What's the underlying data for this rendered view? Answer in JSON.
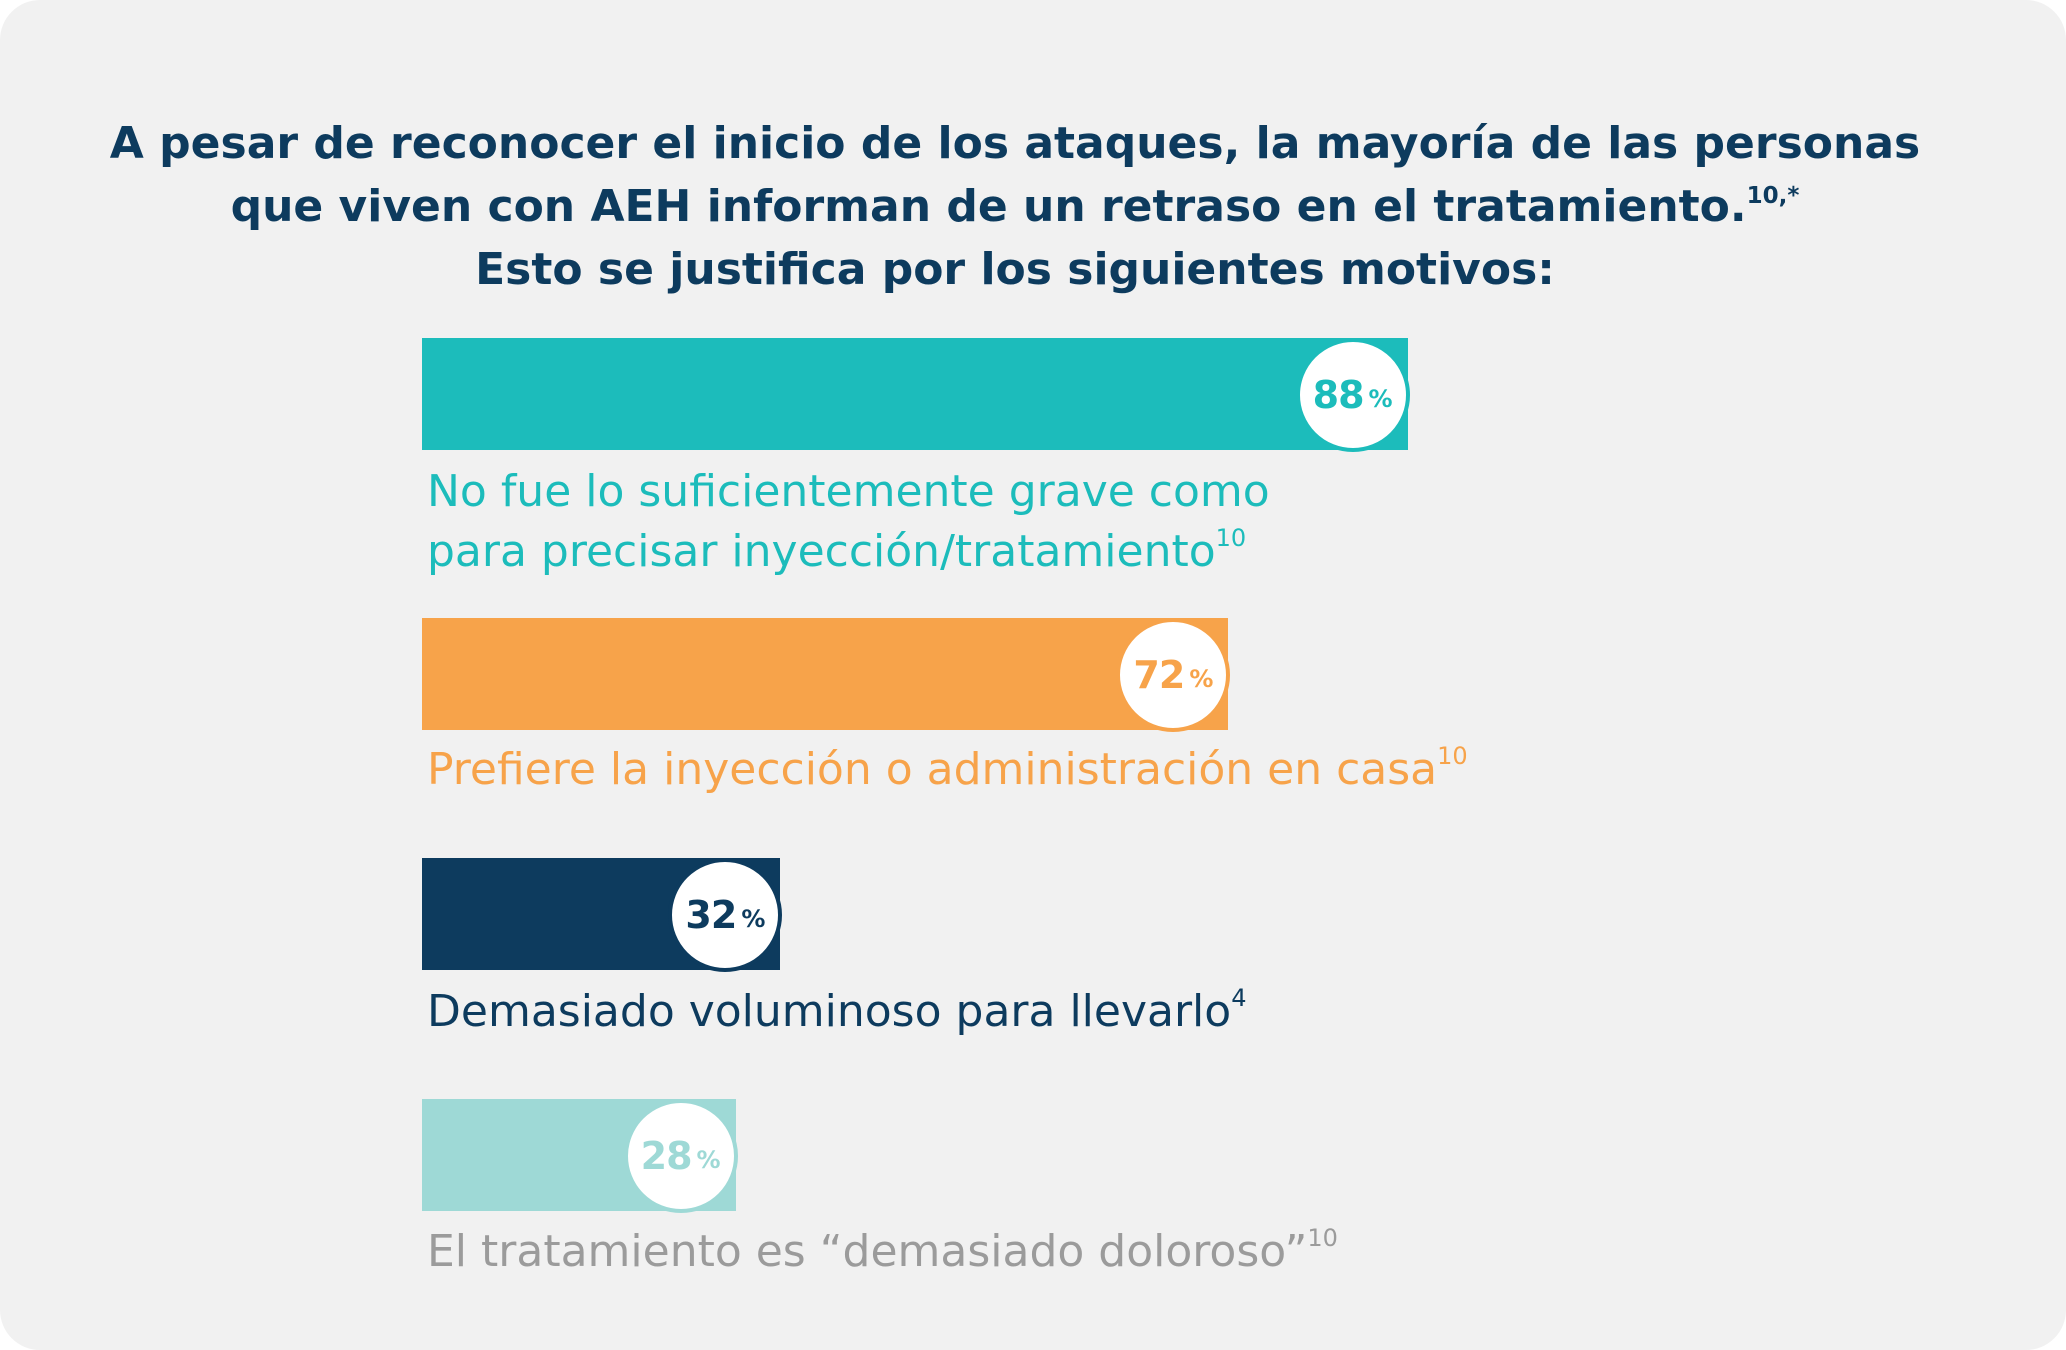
{
  "title": {
    "line1": "A pesar de reconocer el inicio de los ataques, la mayoría de las personas",
    "line2": "que viven con AEH informan de un retraso en el tratamiento.",
    "line2_sup": "10,*",
    "line3": "Esto se justifica por los siguientes motivos:"
  },
  "chart_data": {
    "type": "bar",
    "orientation": "horizontal",
    "unit": "%",
    "xlim": [
      0,
      100
    ],
    "categories": [
      "No fue lo suficientemente grave como para precisar inyección/tratamiento",
      "Prefiere la inyección o administración en casa",
      "Demasiado voluminoso para llevarlo",
      "El tratamiento es “demasiado doloroso”"
    ],
    "values": [
      88,
      72,
      32,
      28
    ],
    "bars": [
      {
        "value": 88,
        "value_text": "88",
        "pct_symbol": "%",
        "label_lines": [
          "No fue lo suficientemente grave como",
          "para precisar inyección/tratamiento"
        ],
        "label_sup": "10",
        "color": "#1cbcbb",
        "text_color": "#1cbcbb"
      },
      {
        "value": 72,
        "value_text": "72",
        "pct_symbol": "%",
        "label_lines": [
          "Prefiere la inyección o administración en casa"
        ],
        "label_sup": "10",
        "color": "#f7a34a",
        "text_color": "#f7a34a"
      },
      {
        "value": 32,
        "value_text": "32",
        "pct_symbol": "%",
        "label_lines": [
          "Demasiado voluminoso para llevarlo"
        ],
        "label_sup": "4",
        "color": "#0d3b5e",
        "text_color": "#0d3b5e"
      },
      {
        "value": 28,
        "value_text": "28",
        "pct_symbol": "%",
        "label_lines": [
          "El tratamiento es “demasiado doloroso”"
        ],
        "label_sup": "10",
        "color": "#9ed9d6",
        "text_color": "#9b9b9b"
      }
    ]
  }
}
